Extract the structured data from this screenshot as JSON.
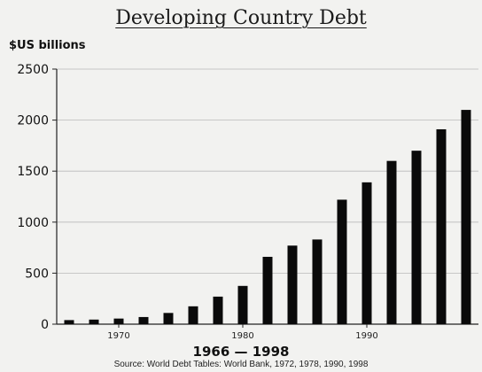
{
  "chart_data": {
    "type": "bar",
    "title": "Developing Country Debt",
    "ylabel": "$US billions",
    "xlabel": "1966 — 1998",
    "source": "Source: World Debt Tables: World Bank, 1972, 1978, 1990, 1998",
    "ylim": [
      0,
      2500
    ],
    "yticks": [
      0,
      500,
      1000,
      1500,
      2000,
      2500
    ],
    "xticks": [
      {
        "value": 1970,
        "label": "1970"
      },
      {
        "value": 1980,
        "label": "1980"
      },
      {
        "value": 1990,
        "label": "1990"
      }
    ],
    "grid": true,
    "bar_color": "#0a0a0a",
    "series": [
      {
        "x": [
          1966,
          1968,
          1970,
          1972,
          1974,
          1976,
          1978,
          1980,
          1982,
          1984,
          1986,
          1988,
          1990,
          1992,
          1994,
          1996,
          1998
        ],
        "values": [
          40,
          45,
          55,
          70,
          110,
          175,
          270,
          375,
          660,
          770,
          830,
          1220,
          1390,
          1600,
          1700,
          1910,
          2100
        ]
      }
    ]
  }
}
